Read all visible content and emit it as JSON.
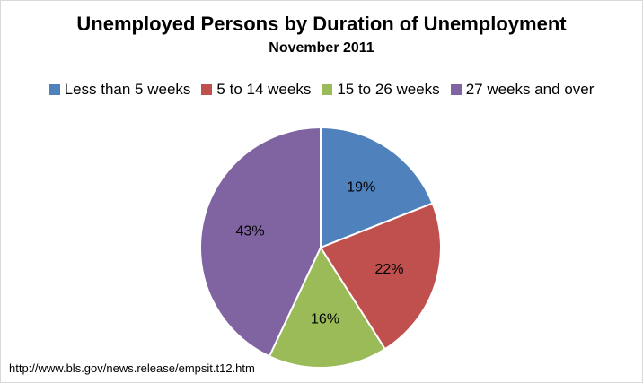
{
  "chart_data": {
    "type": "pie",
    "title": "Unemployed Persons by Duration of Unemployment",
    "subtitle": "November 2011",
    "categories": [
      "Less than 5 weeks",
      "5 to 14 weeks",
      "15 to 26 weeks",
      "27 weeks and over"
    ],
    "values": [
      19,
      22,
      16,
      43
    ],
    "value_labels": [
      "19%",
      "22%",
      "16%",
      "43%"
    ],
    "colors": [
      "#4f81bd",
      "#c0504d",
      "#9bbb59",
      "#8064a2"
    ],
    "legend_position": "top",
    "start_angle": "12 o'clock, clockwise"
  },
  "source": {
    "text": "http://www.bls.gov/news.release/empsit.t12.htm"
  }
}
